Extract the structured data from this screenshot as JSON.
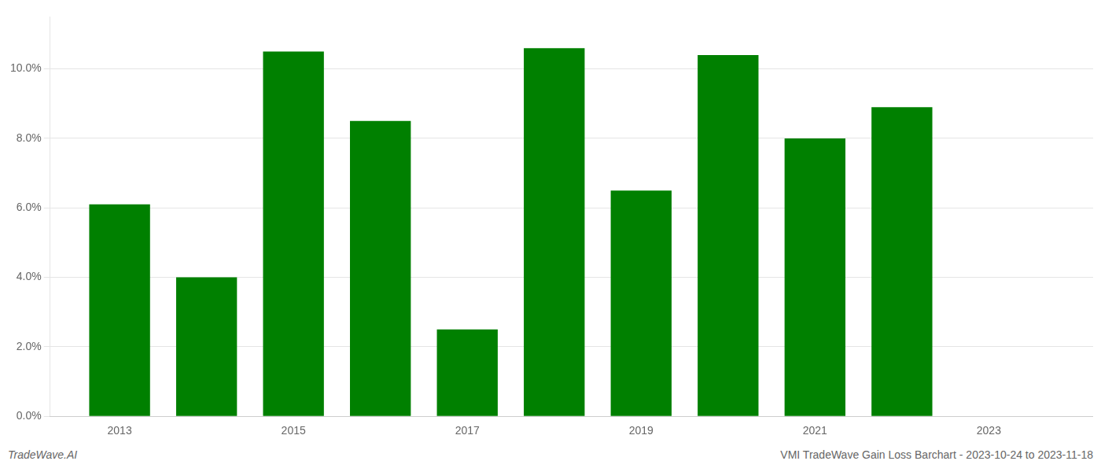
{
  "chart_data": {
    "type": "bar",
    "x": [
      2013,
      2014,
      2015,
      2016,
      2017,
      2018,
      2019,
      2020,
      2021,
      2022
    ],
    "values": [
      0.061,
      0.04,
      0.105,
      0.085,
      0.025,
      0.106,
      0.065,
      0.104,
      0.08,
      0.089
    ],
    "color": "#008000",
    "xlim": [
      2012.2,
      2024.2
    ],
    "xticks": [
      2013,
      2015,
      2017,
      2019,
      2021,
      2023
    ],
    "ylim": [
      0,
      0.115
    ],
    "yticks": [
      {
        "value": 0.0,
        "label": "0.0%"
      },
      {
        "value": 0.02,
        "label": "2.0%"
      },
      {
        "value": 0.04,
        "label": "4.0%"
      },
      {
        "value": 0.06,
        "label": "6.0%"
      },
      {
        "value": 0.08,
        "label": "8.0%"
      },
      {
        "value": 0.1,
        "label": "10.0%"
      }
    ],
    "grid": true,
    "annotations": [
      "TradeWave.AI",
      "VMI TradeWave Gain Loss Barchart - 2023-10-24 to 2023-11-18"
    ]
  }
}
